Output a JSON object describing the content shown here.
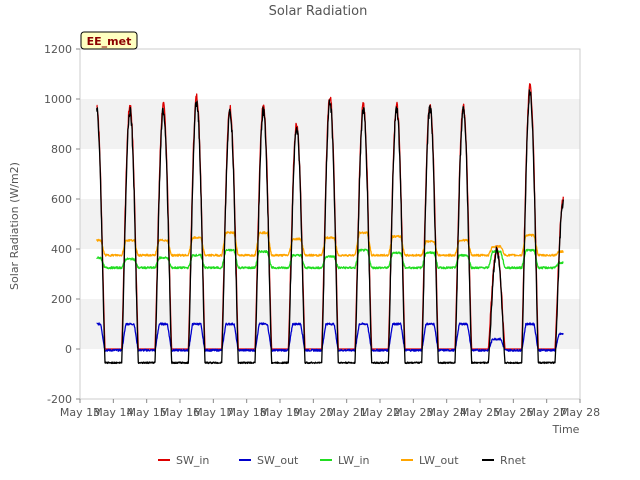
{
  "chart_data": {
    "type": "line",
    "title": "Solar Radiation",
    "xlabel": "Time",
    "ylabel": "Solar Radiation (W/m2)",
    "badge": "EE_met",
    "ylim": [
      -200,
      1200
    ],
    "yticks": [
      -200,
      0,
      200,
      400,
      600,
      800,
      1000,
      1200
    ],
    "xlim": [
      13,
      28
    ],
    "xticks": [
      {
        "day": 13,
        "label": "May 13"
      },
      {
        "day": 14,
        "label": "May 14"
      },
      {
        "day": 15,
        "label": "May 15"
      },
      {
        "day": 16,
        "label": "May 16"
      },
      {
        "day": 17,
        "label": "May 17"
      },
      {
        "day": 18,
        "label": "May 18"
      },
      {
        "day": 19,
        "label": "May 19"
      },
      {
        "day": 20,
        "label": "May 20"
      },
      {
        "day": 21,
        "label": "May 21"
      },
      {
        "day": 22,
        "label": "May 22"
      },
      {
        "day": 23,
        "label": "May 23"
      },
      {
        "day": 24,
        "label": "May 24"
      },
      {
        "day": 25,
        "label": "May 25"
      },
      {
        "day": 26,
        "label": "May 26"
      },
      {
        "day": 27,
        "label": "May 27"
      },
      {
        "day": 28,
        "label": "May 28"
      }
    ],
    "grid": false,
    "background_bands": true,
    "legend_position": "bottom",
    "data_range_days": [
      13.5,
      27.5
    ],
    "days": [
      13,
      14,
      15,
      16,
      17,
      18,
      19,
      20,
      21,
      22,
      23,
      24,
      25,
      26,
      27
    ],
    "daily_sw_in_peak": [
      975,
      975,
      975,
      1010,
      965,
      970,
      900,
      1010,
      975,
      975,
      985,
      975,
      400,
      1050,
      600
    ],
    "series": [
      {
        "name": "SW_in",
        "color": "#dd0000",
        "night_value": 0,
        "peak_factor": 1.0
      },
      {
        "name": "SW_out",
        "color": "#0000cc",
        "night_value": -5,
        "daily_peak": [
          100,
          100,
          100,
          100,
          100,
          100,
          100,
          100,
          100,
          100,
          100,
          100,
          40,
          100,
          60
        ]
      },
      {
        "name": "LW_in",
        "color": "#22dd22",
        "night_value": 325,
        "daily_peak": [
          365,
          360,
          365,
          375,
          395,
          390,
          375,
          370,
          395,
          385,
          385,
          375,
          390,
          395,
          345
        ]
      },
      {
        "name": "LW_out",
        "color": "#ffa500",
        "night_value": 375,
        "daily_peak": [
          435,
          435,
          435,
          445,
          465,
          465,
          440,
          445,
          465,
          450,
          430,
          435,
          410,
          455,
          390
        ]
      },
      {
        "name": "Rnet",
        "color": "#000000",
        "night_value": -55,
        "peak_factor": 0.98
      }
    ]
  }
}
